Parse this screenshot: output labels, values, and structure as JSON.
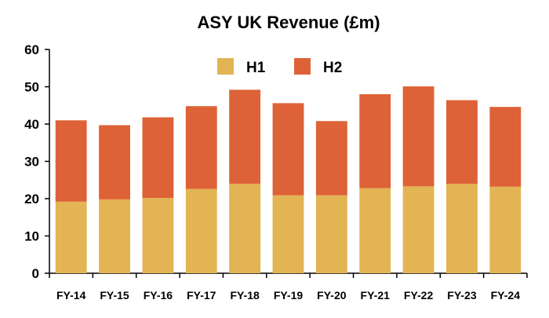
{
  "chart_data": {
    "type": "bar",
    "stacked": true,
    "title": "ASY UK Revenue (£m)",
    "xlabel": "",
    "ylabel": "",
    "ylim": [
      0,
      60
    ],
    "yticks": [
      0,
      10,
      20,
      30,
      40,
      50,
      60
    ],
    "categories": [
      "FY-14",
      "FY-15",
      "FY-16",
      "FY-17",
      "FY-18",
      "FY-19",
      "FY-20",
      "FY-21",
      "FY-22",
      "FY-23",
      "FY-24"
    ],
    "series": [
      {
        "name": "H1",
        "color": "#e3b453",
        "values": [
          19.2,
          19.8,
          20.2,
          22.6,
          24.0,
          20.9,
          20.9,
          22.8,
          23.3,
          24.0,
          23.2
        ]
      },
      {
        "name": "H2",
        "color": "#de6237",
        "values": [
          21.8,
          19.9,
          21.6,
          22.2,
          25.2,
          24.7,
          19.9,
          25.2,
          26.8,
          22.4,
          21.4
        ]
      }
    ],
    "legend_position": "top-center",
    "grid": false
  }
}
